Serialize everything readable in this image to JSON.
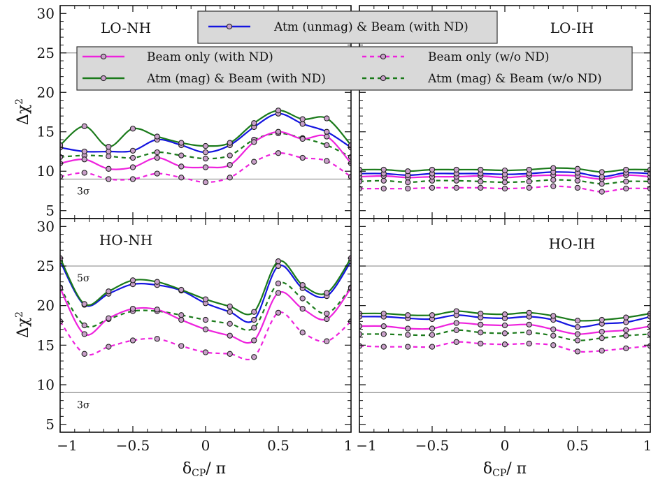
{
  "chart_data": {
    "type": "line",
    "xlabel": "δCP/ π",
    "xlabel_main": "δ",
    "xlabel_sub": "CP",
    "xlabel_tail": "/ π",
    "ylabel": "Δχ²",
    "ylabel_main": "Δχ",
    "ylabel_sup": "2",
    "xlim": [
      -1,
      1
    ],
    "ylim": [
      4,
      31
    ],
    "xticks": [
      -1,
      -0.5,
      0,
      0.5,
      1
    ],
    "xtick_labels": [
      "−1",
      "−0.5",
      "0",
      "0.5",
      "1"
    ],
    "yticks": [
      5,
      10,
      15,
      20,
      25,
      30
    ],
    "ytick_labels": [
      "5",
      "10",
      "15",
      "20",
      "25",
      "30"
    ],
    "grid": false,
    "x": [
      -1,
      -0.833,
      -0.667,
      -0.5,
      -0.333,
      -0.167,
      0,
      0.167,
      0.333,
      0.5,
      0.667,
      0.833,
      1
    ],
    "series_styles": {
      "atm_unmag_beam_nd": {
        "label": "Atm (unmag) & Beam (with ND)",
        "color": "#1414e0",
        "dash": false
      },
      "beam_only_nd": {
        "label": "Beam only (with ND)",
        "color": "#ee22dd",
        "dash": false
      },
      "atm_mag_beam_nd": {
        "label": "Atm (mag) & Beam (with ND)",
        "color": "#1a7a1a",
        "dash": false
      },
      "beam_only_no_nd": {
        "label": "Beam only (w/o ND)",
        "color": "#ee22dd",
        "dash": true
      },
      "atm_mag_beam_no_nd": {
        "label": "Atm (mag) & Beam (w/o ND)",
        "color": "#1a7a1a",
        "dash": true
      }
    },
    "legend": {
      "top": "Atm (unmag) & Beam (with ND)",
      "left": [
        "Beam only (with ND)",
        "Atm (mag) & Beam (with ND)"
      ],
      "right": [
        "Beam only (w/o ND)",
        "Atm (mag) & Beam (w/o ND)"
      ],
      "placement": "top, spanning both upper panels"
    },
    "panels": [
      {
        "label": "LO-NH",
        "sigma_lines": [
          {
            "value": 9,
            "label": "3σ"
          },
          {
            "value": 25,
            "label": ""
          }
        ],
        "series": {
          "atm_unmag_beam_nd": [
            13.0,
            12.5,
            12.5,
            12.6,
            14.0,
            13.3,
            12.4,
            13.3,
            15.6,
            17.3,
            16.0,
            15.0,
            13.0
          ],
          "beam_only_nd": [
            11.0,
            11.5,
            10.3,
            10.5,
            11.7,
            10.6,
            10.5,
            10.8,
            13.7,
            15.0,
            14.1,
            14.4,
            11.0
          ],
          "atm_mag_beam_nd": [
            13.3,
            15.7,
            13.1,
            15.4,
            14.4,
            13.6,
            13.2,
            13.6,
            16.1,
            17.7,
            16.6,
            16.7,
            13.3
          ],
          "beam_only_no_nd": [
            9.3,
            9.8,
            9.0,
            9.0,
            9.7,
            9.2,
            8.6,
            9.2,
            11.2,
            12.3,
            11.7,
            11.3,
            9.3
          ],
          "atm_mag_beam_no_nd": [
            11.8,
            12.0,
            11.9,
            11.7,
            12.4,
            12.0,
            11.6,
            12.0,
            14.0,
            14.8,
            14.2,
            13.3,
            11.8
          ]
        }
      },
      {
        "label": "LO-IH",
        "sigma_lines": [
          {
            "value": 25,
            "label": ""
          }
        ],
        "series": {
          "atm_unmag_beam_nd": [
            9.7,
            9.7,
            9.5,
            9.7,
            9.7,
            9.7,
            9.6,
            9.7,
            9.9,
            9.8,
            9.3,
            9.8,
            9.7
          ],
          "beam_only_nd": [
            9.3,
            9.4,
            9.2,
            9.3,
            9.3,
            9.4,
            9.2,
            9.4,
            9.5,
            9.4,
            9.0,
            9.5,
            9.3
          ],
          "atm_mag_beam_nd": [
            10.2,
            10.2,
            10.0,
            10.2,
            10.2,
            10.2,
            10.1,
            10.2,
            10.4,
            10.3,
            9.9,
            10.2,
            10.2
          ],
          "beam_only_no_nd": [
            7.8,
            7.8,
            7.8,
            7.9,
            7.9,
            7.9,
            7.8,
            7.9,
            8.1,
            7.9,
            7.4,
            7.8,
            7.8
          ],
          "atm_mag_beam_no_nd": [
            8.7,
            8.8,
            8.6,
            8.8,
            8.8,
            8.7,
            8.6,
            8.7,
            8.9,
            8.8,
            8.4,
            8.7,
            8.7
          ]
        }
      },
      {
        "label": "HO-NH",
        "sigma_lines": [
          {
            "value": 9,
            "label": "3σ"
          },
          {
            "value": 25,
            "label": "5σ"
          }
        ],
        "series": {
          "atm_unmag_beam_nd": [
            25.6,
            20.1,
            21.5,
            22.7,
            22.6,
            21.9,
            20.3,
            19.2,
            18.2,
            25.0,
            22.2,
            21.2,
            25.6
          ],
          "beam_only_nd": [
            22.2,
            16.4,
            18.4,
            19.6,
            19.5,
            18.2,
            17.0,
            16.2,
            15.6,
            21.6,
            19.6,
            18.3,
            22.2
          ],
          "atm_mag_beam_nd": [
            26.0,
            20.2,
            21.8,
            23.2,
            23.0,
            22.0,
            20.8,
            19.9,
            19.2,
            25.6,
            22.6,
            21.6,
            26.0
          ],
          "beam_only_no_nd": [
            18.0,
            13.9,
            14.8,
            15.6,
            15.8,
            14.9,
            14.1,
            13.9,
            13.5,
            19.1,
            16.6,
            15.5,
            18.0
          ],
          "atm_mag_beam_no_nd": [
            22.3,
            17.5,
            18.3,
            19.3,
            19.3,
            18.8,
            18.2,
            17.7,
            17.2,
            22.8,
            20.9,
            19.0,
            22.3
          ]
        }
      },
      {
        "label": "HO-IH",
        "sigma_lines": [
          {
            "value": 9,
            "label": ""
          },
          {
            "value": 25,
            "label": ""
          }
        ],
        "series": {
          "atm_unmag_beam_nd": [
            18.6,
            18.6,
            18.4,
            18.3,
            18.8,
            18.5,
            18.4,
            18.6,
            18.2,
            17.3,
            17.7,
            17.9,
            18.6
          ],
          "beam_only_nd": [
            17.4,
            17.4,
            17.1,
            17.1,
            17.8,
            17.6,
            17.5,
            17.6,
            17.0,
            16.4,
            16.7,
            16.9,
            17.4
          ],
          "atm_mag_beam_nd": [
            19.0,
            19.0,
            18.8,
            18.8,
            19.3,
            19.0,
            18.9,
            19.1,
            18.7,
            18.1,
            18.2,
            18.5,
            19.0
          ],
          "beam_only_no_nd": [
            14.9,
            14.8,
            14.8,
            14.8,
            15.4,
            15.2,
            15.1,
            15.2,
            15.0,
            14.2,
            14.3,
            14.6,
            14.9
          ],
          "atm_mag_beam_no_nd": [
            16.4,
            16.4,
            16.3,
            16.3,
            16.9,
            16.6,
            16.5,
            16.6,
            16.2,
            15.6,
            15.9,
            16.2,
            16.4
          ]
        }
      }
    ]
  }
}
